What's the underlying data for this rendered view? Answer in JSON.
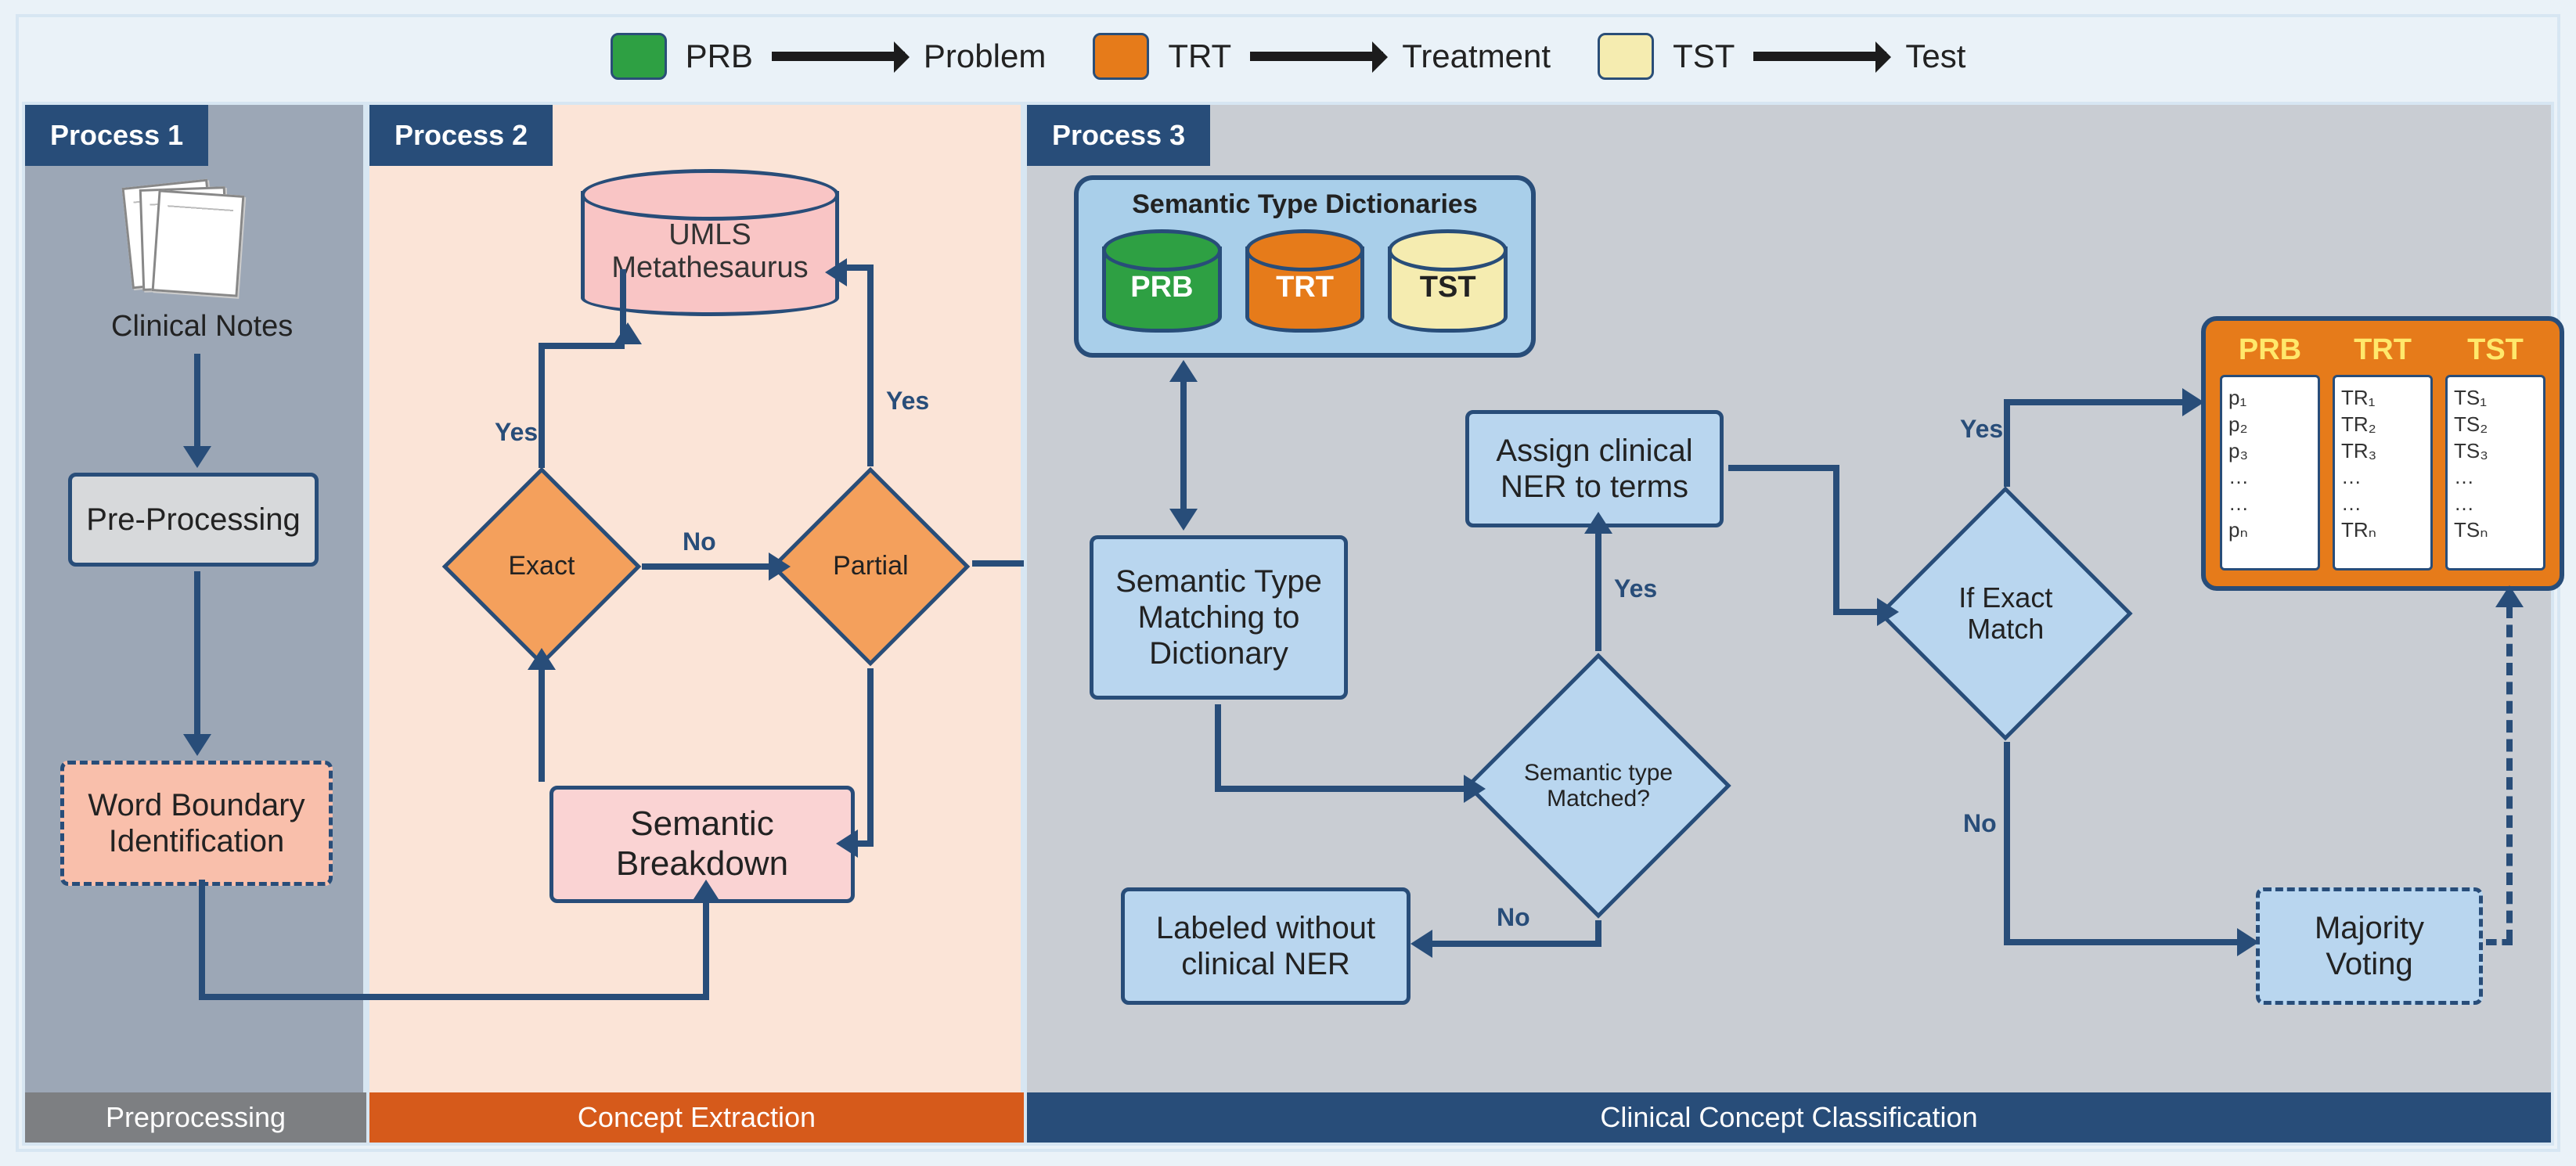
{
  "legend": {
    "items": [
      {
        "code": "PRB",
        "label": "Problem",
        "color": "#2ea043"
      },
      {
        "code": "TRT",
        "label": "Treatment",
        "color": "#e67b1a"
      },
      {
        "code": "TST",
        "label": "Test",
        "color": "#f5ecb0"
      }
    ]
  },
  "panels": {
    "p1": {
      "tag": "Process 1",
      "footer": "Preprocessing",
      "bg": "#9ca7b6",
      "footer_bg": "#7d7f82"
    },
    "p2": {
      "tag": "Process 2",
      "footer": "Concept Extraction",
      "bg": "#fbe4d7",
      "footer_bg": "#d65a1b"
    },
    "p3": {
      "tag": "Process 3",
      "footer": "Clinical Concept Classification",
      "bg": "#c9cdd3",
      "footer_bg": "#284d79"
    }
  },
  "process1": {
    "clinical_notes_label": "Clinical Notes",
    "preprocessing_label": "Pre-Processing",
    "word_boundary_label": "Word Boundary\nIdentification"
  },
  "process2": {
    "umls_label": "UMLS\nMetathesaurus",
    "exact_label": "Exact",
    "partial_label": "Partial",
    "semantic_breakdown_label": "Semantic\nBreakdown",
    "edge_yes_exact": "Yes",
    "edge_no": "No",
    "edge_yes_partial": "Yes"
  },
  "process3": {
    "dict_title": "Semantic Type Dictionaries",
    "dict_items": [
      {
        "code": "PRB",
        "color": "#2ea043",
        "text_color": "#ffffff"
      },
      {
        "code": "TRT",
        "color": "#e67b1a",
        "text_color": "#ffffff"
      },
      {
        "code": "TST",
        "color": "#f5ecb0",
        "text_color": "#222222"
      }
    ],
    "sem_match_label": "Semantic Type\nMatching to\nDictionary",
    "assign_label": "Assign clinical\nNER to terms",
    "sem_matched_decision": "Semantic type\nMatched?",
    "labeled_without_label": "Labeled without\nclinical NER",
    "if_exact_label": "If Exact\nMatch",
    "majority_label": "Majority\nVoting",
    "edge_yes1": "Yes",
    "edge_no1": "No",
    "edge_yes2": "Yes",
    "edge_no2": "No",
    "output": {
      "headers": [
        "PRB",
        "TRT",
        "TST"
      ],
      "columns": [
        [
          "p₁",
          "p₂",
          "p₃",
          "…",
          "…",
          "pₙ"
        ],
        [
          "TR₁",
          "TR₂",
          "TR₃",
          "…",
          "…",
          "TRₙ"
        ],
        [
          "TS₁",
          "TS₂",
          "TS₃",
          "…",
          "…",
          "TSₙ"
        ]
      ]
    }
  },
  "style": {
    "border_color": "#284d79",
    "light_blue": "#b9d6ef",
    "salmon": "#f9bfab",
    "pink": "#fad3d3",
    "orange_node": "#f4a05c",
    "blue_panel": "#a9cfea",
    "output_bg": "#e67b1a"
  }
}
